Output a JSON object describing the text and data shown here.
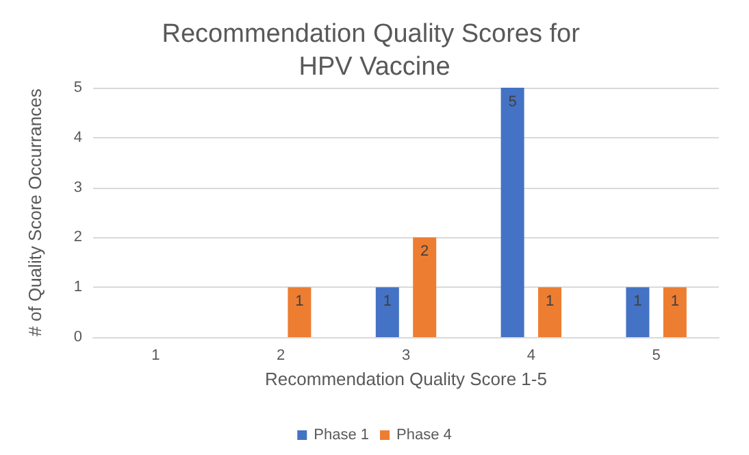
{
  "chart_data": {
    "type": "bar",
    "title": "Recommendation Quality Scores for HPV Vaccine",
    "xlabel": "Recommendation Quality Score 1-5",
    "ylabel": "# of Quality Score Occurrances",
    "categories": [
      "1",
      "2",
      "3",
      "4",
      "5"
    ],
    "series": [
      {
        "name": "Phase 1",
        "color": "#4472c4",
        "values": [
          0,
          0,
          1,
          5,
          1
        ],
        "value_labels": [
          null,
          null,
          "1",
          "5",
          "1"
        ]
      },
      {
        "name": "Phase 4",
        "color": "#ed7d31",
        "values": [
          0,
          1,
          2,
          1,
          1
        ],
        "value_labels": [
          null,
          "1",
          "2",
          "1",
          "1"
        ]
      }
    ],
    "ylim": [
      0,
      5
    ],
    "yticks": [
      0,
      1,
      2,
      3,
      4,
      5
    ],
    "grid": "y",
    "legend": "bottom"
  }
}
